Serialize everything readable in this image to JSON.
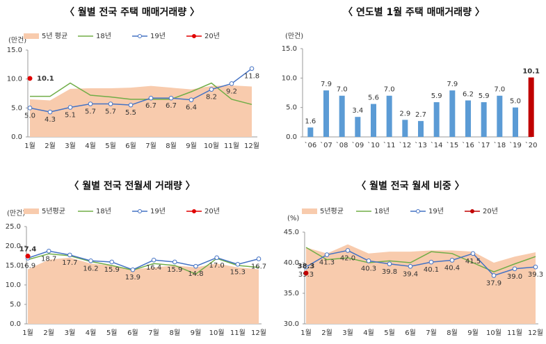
{
  "chart_data": [
    {
      "type": "line",
      "title": "〈 월별 전국 주택 매매거래량 〉",
      "ylabel": "(만건)",
      "categories": [
        "1월",
        "2월",
        "3월",
        "4월",
        "5월",
        "6월",
        "7월",
        "8월",
        "9월",
        "10월",
        "11월",
        "12월"
      ],
      "ylim": [
        0,
        15
      ],
      "yticks": [
        {
          "value": 0,
          "label": "0.0"
        },
        {
          "value": 5,
          "label": "5.0"
        },
        {
          "value": 10,
          "label": "10.0"
        },
        {
          "value": 15,
          "label": "15.0"
        }
      ],
      "series": [
        {
          "name": "5년 평균",
          "kind": "area",
          "color": "#f8cbad",
          "values": [
            6.5,
            6.3,
            8.3,
            8.4,
            8.4,
            8.5,
            8.8,
            8.5,
            8.2,
            8.8,
            8.9,
            8.7
          ]
        },
        {
          "name": "18년",
          "kind": "line",
          "color": "#70ad47",
          "values": [
            7.0,
            7.0,
            9.3,
            7.2,
            6.9,
            6.5,
            6.5,
            6.5,
            7.8,
            9.3,
            6.5,
            5.6
          ]
        },
        {
          "name": "19년",
          "kind": "line",
          "marker": "open",
          "color": "#4472c4",
          "values": [
            5.0,
            4.3,
            5.1,
            5.7,
            5.7,
            5.5,
            6.7,
            6.7,
            6.4,
            8.2,
            9.2,
            11.8
          ],
          "value_labels": [
            "5.0",
            "4.3",
            "5.1",
            "5.7",
            "5.7",
            "5.5",
            "6.7",
            "6.7",
            "6.4",
            "8.2",
            "9.2",
            "11.8"
          ]
        },
        {
          "name": "20년",
          "kind": "line",
          "marker": "filled",
          "color": "#e00000",
          "values": [
            10.1,
            null,
            null,
            null,
            null,
            null,
            null,
            null,
            null,
            null,
            null,
            null
          ],
          "value_labels": [
            "10.1",
            null,
            null,
            null,
            null,
            null,
            null,
            null,
            null,
            null,
            null,
            null
          ]
        }
      ]
    },
    {
      "type": "bar",
      "title": "〈 연도별 1월 주택 매매거래량 〉",
      "ylabel": "(만건)",
      "categories": [
        "`06",
        "`07",
        "`08",
        "`09",
        "`10",
        "`11",
        "`12",
        "`13",
        "`14",
        "`15",
        "`16",
        "`17",
        "`18",
        "`19",
        "`20"
      ],
      "values": [
        1.6,
        7.9,
        7.0,
        3.4,
        5.6,
        7.0,
        2.9,
        2.7,
        5.9,
        7.9,
        6.2,
        5.9,
        7.0,
        5.0,
        10.1
      ],
      "value_labels": [
        "1.6",
        "7.9",
        "7.0",
        "3.4",
        "5.6",
        "7.0",
        "2.9",
        "2.7",
        "5.9",
        "7.9",
        "6.2",
        "5.9",
        "7.0",
        "5.0",
        "10.1"
      ],
      "colors": [
        "#5b9bd5",
        "#5b9bd5",
        "#5b9bd5",
        "#5b9bd5",
        "#5b9bd5",
        "#5b9bd5",
        "#5b9bd5",
        "#5b9bd5",
        "#5b9bd5",
        "#5b9bd5",
        "#5b9bd5",
        "#5b9bd5",
        "#5b9bd5",
        "#5b9bd5",
        "#c00000"
      ],
      "ylim": [
        0,
        15
      ],
      "yticks": [
        {
          "value": 0,
          "label": "0.0"
        },
        {
          "value": 5,
          "label": "5.0"
        },
        {
          "value": 10,
          "label": "10.0"
        },
        {
          "value": 15,
          "label": "15.0"
        }
      ]
    },
    {
      "type": "line",
      "title": "〈 월별 전국 전월세 거래량 〉",
      "ylabel": "(만건)",
      "categories": [
        "1월",
        "2월",
        "3월",
        "4월",
        "5월",
        "6월",
        "7월",
        "8월",
        "9월",
        "10월",
        "11월",
        "12월"
      ],
      "ylim": [
        0,
        25
      ],
      "yticks": [
        {
          "value": 0,
          "label": "0.0"
        },
        {
          "value": 5,
          "label": "5.0"
        },
        {
          "value": 10,
          "label": "10.0"
        },
        {
          "value": 15,
          "label": "15.0"
        },
        {
          "value": 20,
          "label": "20.0"
        },
        {
          "value": 25,
          "label": "25.0"
        }
      ],
      "series": [
        {
          "name": "5년평균",
          "kind": "area",
          "color": "#f8cbad",
          "values": [
            14.0,
            16.5,
            17.0,
            15.5,
            15.0,
            14.0,
            14.5,
            15.0,
            14.5,
            15.5,
            14.5,
            14.0
          ]
        },
        {
          "name": "18년",
          "kind": "line",
          "color": "#70ad47",
          "values": [
            16.5,
            18.0,
            17.5,
            16.0,
            15.0,
            13.8,
            15.5,
            15.0,
            12.8,
            16.8,
            15.0,
            14.5
          ]
        },
        {
          "name": "19년",
          "kind": "line",
          "marker": "open",
          "color": "#4472c4",
          "values": [
            16.9,
            18.7,
            17.7,
            16.2,
            15.9,
            13.9,
            16.4,
            15.9,
            14.8,
            17.0,
            15.3,
            16.7
          ],
          "value_labels": [
            "16.9",
            "18.7",
            "17.7",
            "16.2",
            "15.9",
            "13.9",
            "16.4",
            "15.9",
            "14.8",
            "17.0",
            "15.3",
            "16.7"
          ]
        },
        {
          "name": "20년",
          "kind": "line",
          "marker": "filled",
          "color": "#e00000",
          "values": [
            17.4,
            null,
            null,
            null,
            null,
            null,
            null,
            null,
            null,
            null,
            null,
            null
          ],
          "value_labels": [
            "17.4",
            null,
            null,
            null,
            null,
            null,
            null,
            null,
            null,
            null,
            null,
            null
          ]
        }
      ]
    },
    {
      "type": "line",
      "title": "〈 월별 전국 월세 비중 〉",
      "ylabel": "(%)",
      "categories": [
        "1월",
        "2월",
        "3월",
        "4월",
        "5월",
        "6월",
        "7월",
        "8월",
        "9월",
        "10월",
        "11월",
        "12월"
      ],
      "ylim": [
        30,
        45
      ],
      "yticks": [
        {
          "value": 30,
          "label": "30.0"
        },
        {
          "value": 35,
          "label": "35.0"
        },
        {
          "value": 40,
          "label": "40.0"
        },
        {
          "value": 45,
          "label": "45.0"
        }
      ],
      "series": [
        {
          "name": "5년평균",
          "kind": "area",
          "color": "#f8cbad",
          "values": [
            42.5,
            41.5,
            43.0,
            41.5,
            41.8,
            41.8,
            42.0,
            42.0,
            41.8,
            40.0,
            41.0,
            41.7
          ]
        },
        {
          "name": "18년",
          "kind": "line",
          "color": "#70ad47",
          "values": [
            42.5,
            40.5,
            40.8,
            40.0,
            40.3,
            40.0,
            41.8,
            41.5,
            40.0,
            38.5,
            39.8,
            41.0
          ]
        },
        {
          "name": "19년",
          "kind": "line",
          "marker": "open",
          "color": "#4472c4",
          "values": [
            39.3,
            41.3,
            42.0,
            40.3,
            39.8,
            39.4,
            40.1,
            40.4,
            41.5,
            37.9,
            39.0,
            39.3
          ],
          "value_labels": [
            "39.3",
            "41.3",
            "42.0",
            "40.3",
            "39.8",
            "39.4",
            "40.1",
            "40.4",
            "41.5",
            "37.9",
            "39.0",
            "39.3"
          ]
        },
        {
          "name": "20년",
          "kind": "line",
          "marker": "filled",
          "color": "#c00000",
          "values": [
            38.3,
            null,
            null,
            null,
            null,
            null,
            null,
            null,
            null,
            null,
            null,
            null
          ],
          "value_labels": [
            "38.3",
            null,
            null,
            null,
            null,
            null,
            null,
            null,
            null,
            null,
            null,
            null
          ]
        }
      ]
    }
  ]
}
